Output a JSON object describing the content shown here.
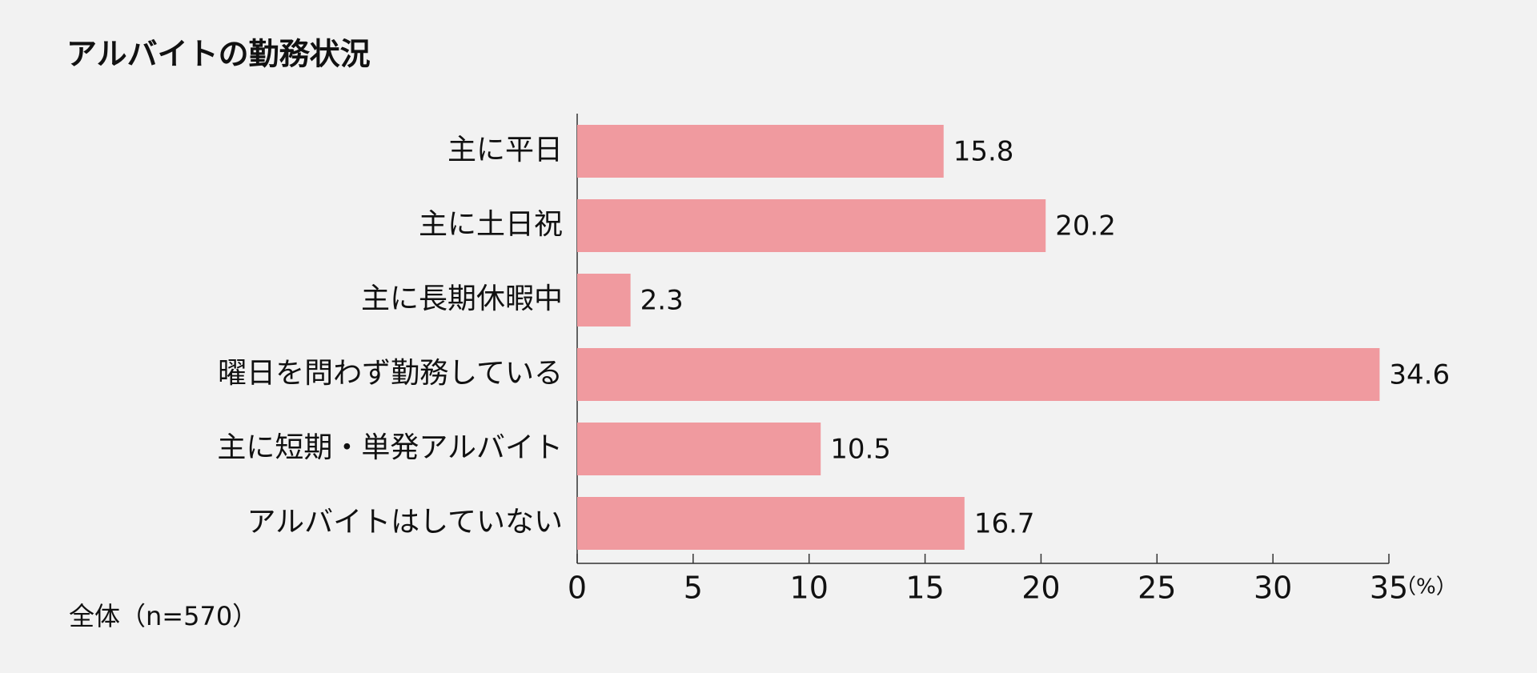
{
  "chart_data": {
    "type": "bar",
    "orientation": "horizontal",
    "title": "アルバイトの勤務状況",
    "categories": [
      "主に平日",
      "主に土日祝",
      "主に長期休暇中",
      "曜日を問わず勤務している",
      "主に短期・単発アルバイト",
      "アルバイトはしていない"
    ],
    "values": [
      15.8,
      20.2,
      2.3,
      34.6,
      10.5,
      16.7
    ],
    "color": "#f09a9f",
    "xlim": [
      0,
      35
    ],
    "xticks": [
      0,
      5,
      10,
      15,
      20,
      25,
      30,
      35
    ],
    "x_label": "（%）",
    "note": "全体（n=570）"
  }
}
